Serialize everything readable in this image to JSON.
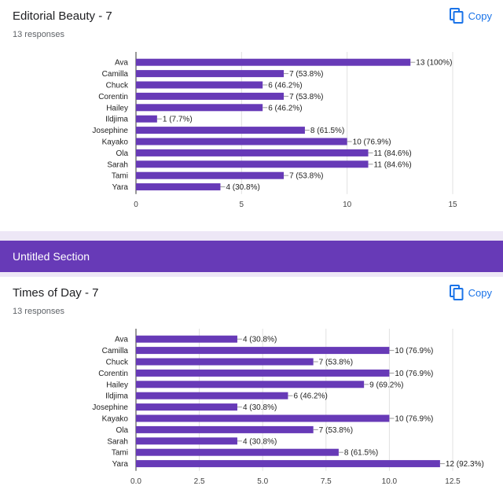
{
  "cards": [
    {
      "title": "Editorial Beauty - 7",
      "responses": "13 responses",
      "copy_label": "Copy",
      "chart_data": {
        "type": "bar",
        "orientation": "horizontal",
        "categories": [
          "Ava",
          "Camilla",
          "Chuck",
          "Corentin",
          "Hailey",
          "Ildjima",
          "Josephine",
          "Kayako",
          "Ola",
          "Sarah",
          "Tami",
          "Yara"
        ],
        "values": [
          13,
          7,
          6,
          7,
          6,
          1,
          8,
          10,
          11,
          11,
          7,
          4
        ],
        "data_labels": [
          "13 (100%)",
          "7 (53.8%)",
          "6 (46.2%)",
          "7 (53.8%)",
          "6 (46.2%)",
          "1 (7.7%)",
          "8 (61.5%)",
          "10 (76.9%)",
          "11 (84.6%)",
          "11 (84.6%)",
          "7 (53.8%)",
          "4 (30.8%)"
        ],
        "xlim": [
          0,
          15
        ],
        "xticks": [
          "0",
          "5",
          "10",
          "15"
        ],
        "grid": true,
        "bar_color": "#673ab7"
      }
    },
    {
      "title": "Times of Day - 7",
      "responses": "13 responses",
      "copy_label": "Copy",
      "chart_data": {
        "type": "bar",
        "orientation": "horizontal",
        "categories": [
          "Ava",
          "Camilla",
          "Chuck",
          "Corentin",
          "Hailey",
          "Ildjima",
          "Josephine",
          "Kayako",
          "Ola",
          "Sarah",
          "Tami",
          "Yara"
        ],
        "values": [
          4,
          10,
          7,
          10,
          9,
          6,
          4,
          10,
          7,
          4,
          8,
          12
        ],
        "data_labels": [
          "4 (30.8%)",
          "10 (76.9%)",
          "7 (53.8%)",
          "10 (76.9%)",
          "9 (69.2%)",
          "6 (46.2%)",
          "4 (30.8%)",
          "10 (76.9%)",
          "7 (53.8%)",
          "4 (30.8%)",
          "8 (61.5%)",
          "12 (92.3%)"
        ],
        "xlim": [
          0,
          12.5
        ],
        "xticks": [
          "0.0",
          "2.5",
          "5.0",
          "7.5",
          "10.0",
          "12.5"
        ],
        "grid": true,
        "bar_color": "#673ab7"
      }
    }
  ],
  "section": {
    "title": "Untitled Section"
  },
  "colors": {
    "accent": "#673ab7",
    "link": "#1a73e8",
    "section_bg": "#ede7f6"
  },
  "icons": {
    "copy": "copy-icon"
  }
}
